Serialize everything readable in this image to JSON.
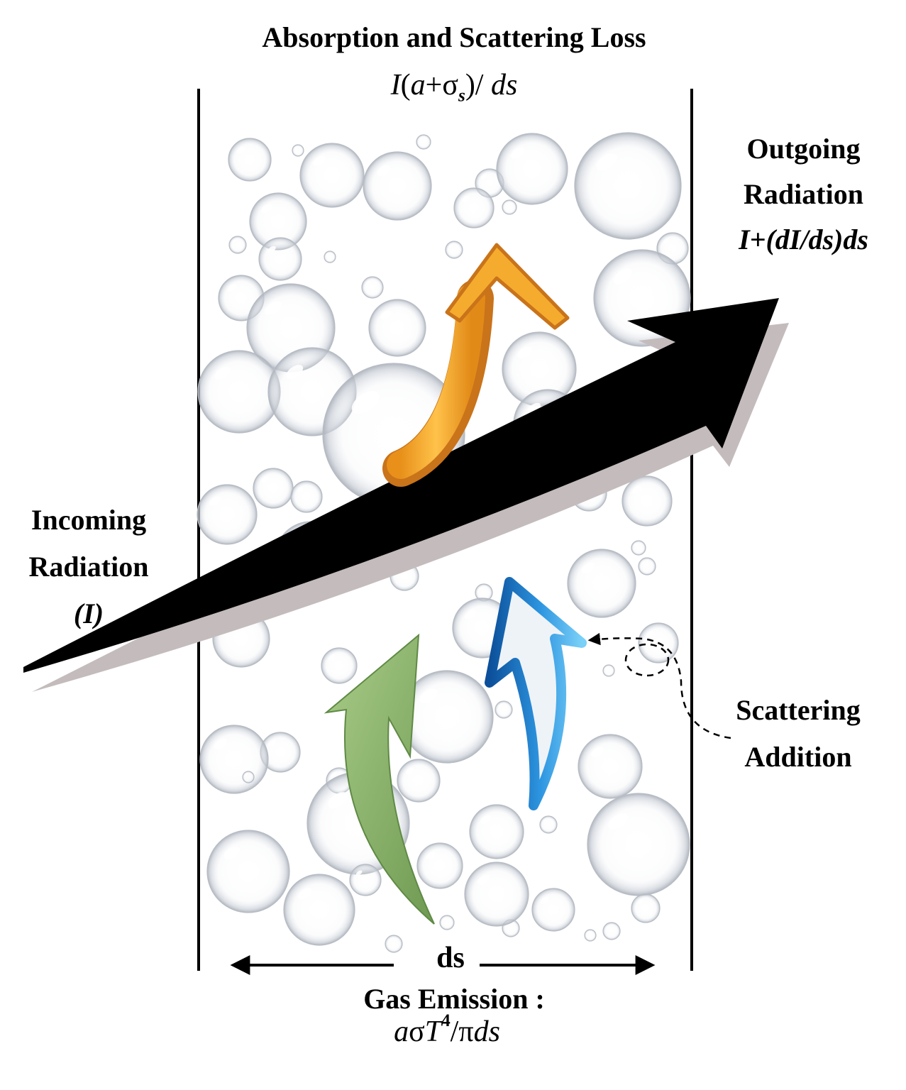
{
  "title": "Absorption and Scattering Loss",
  "loss_formula": {
    "prefix": "I",
    "open": "(",
    "a": "a",
    "plus": "+",
    "sigma": "σ",
    "sub": "s",
    "close": ")/ ",
    "ds": "ds"
  },
  "incoming": {
    "line1": "Incoming",
    "line2": "Radiation",
    "line3": "(I)"
  },
  "outgoing": {
    "line1": "Outgoing",
    "line2": "Radiation",
    "line3": "I+(dI/ds)ds"
  },
  "scattering": {
    "line1": "Scattering",
    "line2": "Addition"
  },
  "ds_label": "ds",
  "emission": {
    "label": "Gas Emission :",
    "a": "a",
    "sigma": "σ",
    "T": "T",
    "exp": "4",
    "slash": "/",
    "pi": "π",
    "ds": "ds"
  },
  "colors": {
    "main_arrow": "#000000",
    "shadow": "#c4bcbc",
    "orange_arrow": "#f2a52a",
    "green_arrow": "#8fb670",
    "blue_arrow": "#2a8fd8"
  },
  "icons": [
    "bubble-icon",
    "curved-arrow-icon",
    "double-arrow-icon"
  ]
}
